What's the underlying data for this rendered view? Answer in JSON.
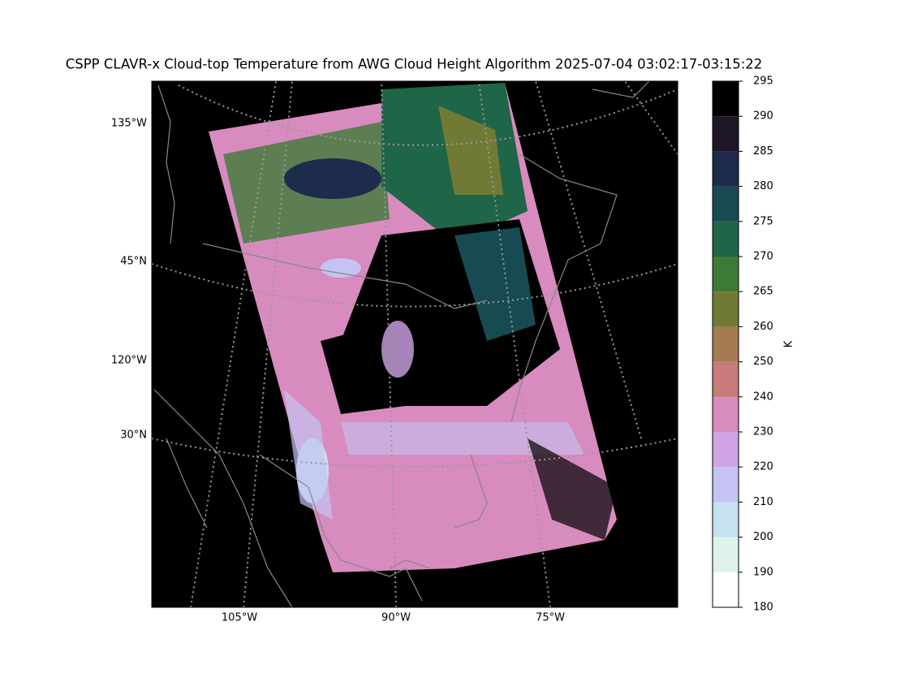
{
  "title": "CSPP CLAVR-x Cloud-top Temperature from AWG Cloud Height Algorithm 2025-07-04 03:02:17-03:15:22",
  "map": {
    "lon_labels": [
      "105°W",
      "90°W",
      "75°W"
    ],
    "side_labels": [
      "135°W",
      "45°N",
      "120°W",
      "30°N"
    ]
  },
  "colorbar": {
    "label": "K",
    "ticks": [
      180,
      190,
      200,
      210,
      220,
      230,
      240,
      250,
      260,
      265,
      270,
      275,
      280,
      285,
      290,
      295
    ],
    "colors": [
      "#ffffff",
      "#dff3ee",
      "#c6e2f2",
      "#c4c3f2",
      "#d0a4e6",
      "#d88bbf",
      "#c97a7a",
      "#a57c52",
      "#717a34",
      "#3e7a37",
      "#1f6547",
      "#174b51",
      "#1d2b4d",
      "#1f1629",
      "#000000"
    ]
  }
}
